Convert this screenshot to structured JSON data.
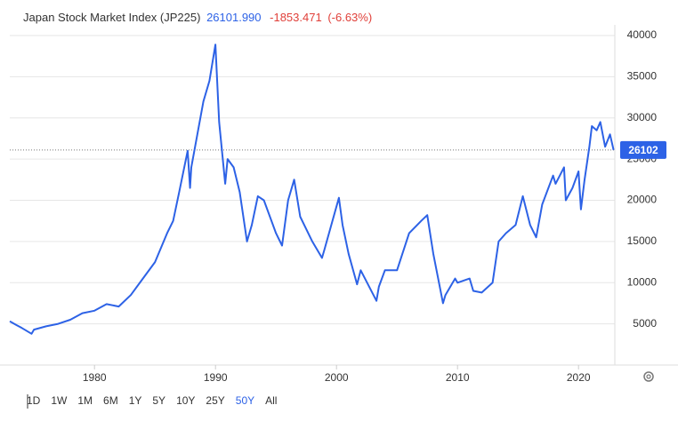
{
  "header": {
    "title": "Japan Stock Market Index (JP225)",
    "price": "26101.990",
    "change": "-1853.471",
    "change_pct": "(-6.63%)"
  },
  "chart_data": {
    "type": "line",
    "series": [
      {
        "color": "#2d62e6",
        "x": [
          1973,
          1973.5,
          1974,
          1974.8,
          1975,
          1976,
          1977,
          1978,
          1979,
          1980,
          1981,
          1982,
          1983,
          1984,
          1985,
          1986,
          1986.5,
          1987,
          1987.7,
          1987.9,
          1988,
          1988.5,
          1989,
          1989.5,
          1989.99,
          1990.3,
          1990.8,
          1991,
          1991.5,
          1992,
          1992.6,
          1993,
          1993.5,
          1994,
          1995,
          1995.5,
          1996,
          1996.5,
          1997,
          1998,
          1998.8,
          1999,
          2000.2,
          2000.5,
          2001,
          2001.7,
          2002,
          2003.3,
          2003.5,
          2004,
          2005,
          2006,
          2007,
          2007.5,
          2008,
          2008.8,
          2009,
          2009.8,
          2010,
          2011,
          2011.3,
          2012,
          2012.9,
          2013.4,
          2014,
          2014.8,
          2015.4,
          2016,
          2016.5,
          2017,
          2017.9,
          2018.1,
          2018.8,
          2018.95,
          2019.5,
          2020,
          2020.2,
          2020.5,
          2020.9,
          2021.1,
          2021.5,
          2021.8,
          2022.2,
          2022.6,
          2022.9
        ],
        "values": [
          5300,
          4900,
          4500,
          3800,
          4300,
          4700,
          5000,
          5500,
          6300,
          6600,
          7400,
          7100,
          8500,
          10500,
          12500,
          16000,
          17500,
          21000,
          26000,
          21500,
          24000,
          28000,
          32000,
          34500,
          38900,
          29500,
          22000,
          25000,
          24000,
          21000,
          15000,
          17000,
          20500,
          20000,
          16000,
          14500,
          20000,
          22500,
          18000,
          15000,
          13000,
          14000,
          20300,
          17000,
          13500,
          9800,
          11500,
          7800,
          9500,
          11500,
          11500,
          16000,
          17500,
          18200,
          13500,
          7500,
          8500,
          10500,
          10000,
          10500,
          9000,
          8800,
          10000,
          15000,
          16000,
          17000,
          20500,
          17000,
          15500,
          19500,
          23000,
          22000,
          24000,
          20000,
          21500,
          23500,
          18900,
          22500,
          26500,
          29000,
          28500,
          29500,
          26500,
          28000,
          26101.99
        ]
      }
    ],
    "xlim": [
      1973,
      2023
    ],
    "xticks": [
      1980,
      1990,
      2000,
      2010,
      2020
    ],
    "ylim": [
      0,
      40000
    ],
    "yticks": [
      5000,
      10000,
      15000,
      20000,
      25000,
      30000,
      35000,
      40000
    ],
    "grid": true,
    "last": {
      "value": 26101.99,
      "label": "26102"
    }
  },
  "range_buttons": {
    "items": [
      "1D",
      "1W",
      "1M",
      "6M",
      "1Y",
      "5Y",
      "10Y",
      "25Y",
      "50Y",
      "All"
    ],
    "active": 8
  }
}
